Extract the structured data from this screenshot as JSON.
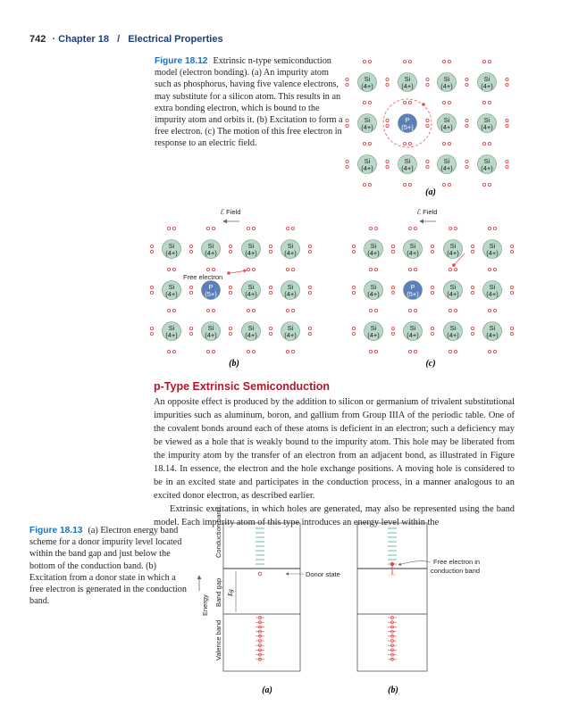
{
  "header": {
    "page_number": "742",
    "separator": "·",
    "chapter": "Chapter 18",
    "slash": "/",
    "title": "Electrical Properties"
  },
  "figure_18_12": {
    "label": "Figure 18.12",
    "caption": "Extrinsic n-type semiconduction model (electron bonding). (a) An impurity atom such as phosphorus, having five valence electrons, may substitute for a silicon atom. This results in an extra bonding electron, which is bound to the impurity atom and orbits it. (b) Excitation to form a free electron. (c) The motion of this free electron in response to an electric field.",
    "panels": [
      {
        "label": "(a)"
      },
      {
        "label": "(b)",
        "field_label": "ℰ Field",
        "annotation": "Free electron"
      },
      {
        "label": "(c)",
        "field_label": "ℰ Field"
      }
    ],
    "atoms": {
      "si_symbol": "Si",
      "si_charge": "(4+)",
      "p_symbol": "P",
      "p_charge": "(5+)"
    },
    "colors": {
      "si": "#b9d8c8",
      "p": "#5b7fb8",
      "electron": "#e8474b"
    }
  },
  "section": {
    "title": "p-Type Extrinsic Semiconduction",
    "paragraphs": [
      "An opposite effect is produced by the addition to silicon or germanium of trivalent substitutional impurities such as aluminum, boron, and gallium from Group IIIA of the periodic table. One of the covalent bonds around each of these atoms is deficient in an electron; such a deficiency may be viewed as a hole that is weakly bound to the impurity atom. This hole may be liberated from the impurity atom by the transfer of an electron from an adjacent bond, as illustrated in Figure 18.14. In essence, the electron and the hole exchange positions. A moving hole is considered to be in an excited state and participates in the conduction process, in a manner analogous to an excited donor electron, as described earlier.",
      "Extrinsic excitations, in which holes are generated, may also be represented using the band model. Each impurity atom of this type introduces an energy level within the"
    ]
  },
  "figure_18_13": {
    "label": "Figure 18.13",
    "caption": "(a) Electron energy band scheme for a donor impurity level located within the band gap and just below the bottom of the conduction band. (b) Excitation from a donor state in which a free electron is generated in the conduction band.",
    "axis_labels": {
      "energy": "Energy",
      "band_gap": "Band gap",
      "eg": "Eg",
      "conduction": "Conduction band",
      "valence": "Valence band"
    },
    "annotations": {
      "donor": "Donor state",
      "free_line1": "Free electron in",
      "free_line2": "conduction band"
    },
    "panels": [
      {
        "label": "(a)"
      },
      {
        "label": "(b)"
      }
    ]
  }
}
